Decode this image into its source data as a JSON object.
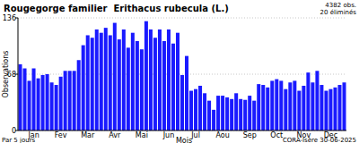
{
  "chart_data": {
    "type": "bar",
    "title": "Rougegorge familier  Erithacus rubecula (L.)",
    "x_label": "Mois",
    "y_label": "Observations",
    "annotations": [
      "4382 obs.",
      "20 éliminés",
      "Par 5 jours",
      "CORA-Isère 30-06-2025"
    ],
    "categories": [
      null,
      null,
      null,
      "Jan",
      null,
      null,
      null,
      null,
      null,
      "Fev",
      null,
      null,
      null,
      null,
      null,
      "Mar",
      null,
      null,
      null,
      null,
      null,
      "Avr",
      null,
      null,
      null,
      null,
      null,
      "Mai",
      null,
      null,
      null,
      null,
      null,
      "Jun",
      null,
      null,
      null,
      null,
      null,
      "Jul",
      null,
      null,
      null,
      null,
      null,
      "Aou",
      null,
      null,
      null,
      null,
      null,
      "Sep",
      null,
      null,
      null,
      null,
      null,
      "Oct",
      null,
      null,
      null,
      null,
      null,
      "Nov",
      null,
      null,
      null,
      null,
      null,
      "Dec",
      null,
      null,
      null
    ],
    "values": [
      80,
      75,
      60,
      75,
      63,
      67,
      68,
      58,
      55,
      65,
      72,
      72,
      72,
      85,
      103,
      115,
      112,
      122,
      118,
      124,
      115,
      130,
      110,
      122,
      100,
      118,
      108,
      98,
      132,
      122,
      112,
      122,
      108,
      122,
      105,
      118,
      67,
      90,
      48,
      50,
      54,
      45,
      36,
      25,
      42,
      42,
      40,
      38,
      45,
      38,
      37,
      42,
      36,
      56,
      55,
      52,
      60,
      62,
      60,
      50,
      58,
      60,
      48,
      54,
      70,
      58,
      72,
      55,
      48,
      50,
      52,
      55,
      58
    ],
    "color": "#1a1aff",
    "ylim": [
      0,
      136
    ],
    "yticks": [
      0,
      68,
      136
    ],
    "grid": true
  }
}
